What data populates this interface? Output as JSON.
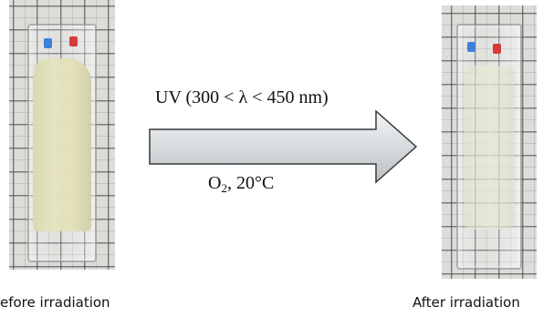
{
  "figure": {
    "condition_light": "UV (300 < λ < 450 nm)",
    "condition_gas_prefix": "O",
    "condition_gas_subscript": "2",
    "condition_gas_suffix": ", 20°C",
    "caption_before": "efore irradiation",
    "caption_after": "After irradiation",
    "colors": {
      "arrow_fill": "#d7dcdf",
      "arrow_stroke": "#3a3a3a",
      "marker_blue": "#3f7fd6",
      "marker_red": "#d63a3a"
    },
    "icons": {
      "arrow": "right-arrow-icon",
      "before_photo": "cuvette-before-photo",
      "after_photo": "cuvette-after-photo"
    }
  }
}
